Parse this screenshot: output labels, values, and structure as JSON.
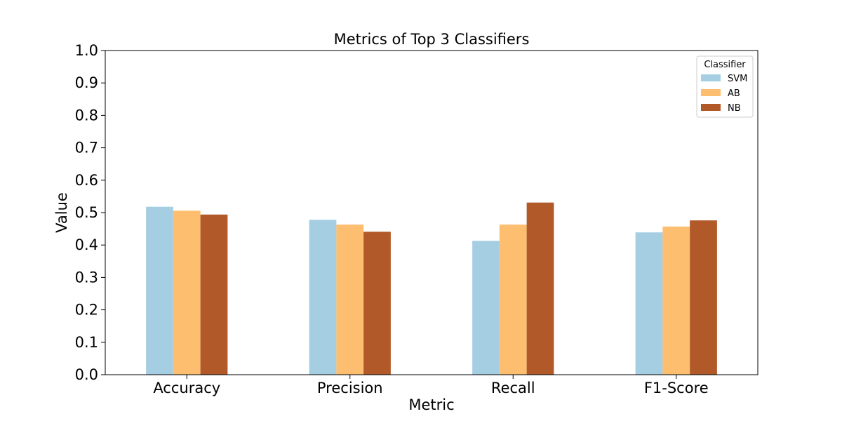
{
  "chart_data": {
    "type": "bar",
    "title": "Metrics of Top 3 Classifiers",
    "xlabel": "Metric",
    "ylabel": "Value",
    "categories": [
      "Accuracy",
      "Precision",
      "Recall",
      "F1-Score"
    ],
    "ylim": [
      0,
      1.0
    ],
    "yticks": [
      "0.0",
      "0.1",
      "0.2",
      "0.3",
      "0.4",
      "0.5",
      "0.6",
      "0.7",
      "0.8",
      "0.9",
      "1.0"
    ],
    "grid": false,
    "legend": {
      "title": "Classifier",
      "placement": "top-right"
    },
    "series": [
      {
        "name": "SVM",
        "color": "#a6cee3",
        "values": [
          0.518,
          0.478,
          0.413,
          0.439
        ]
      },
      {
        "name": "AB",
        "color": "#fdbf6f",
        "values": [
          0.506,
          0.463,
          0.463,
          0.457
        ]
      },
      {
        "name": "NB",
        "color": "#b15928",
        "values": [
          0.494,
          0.441,
          0.531,
          0.476
        ]
      }
    ]
  }
}
